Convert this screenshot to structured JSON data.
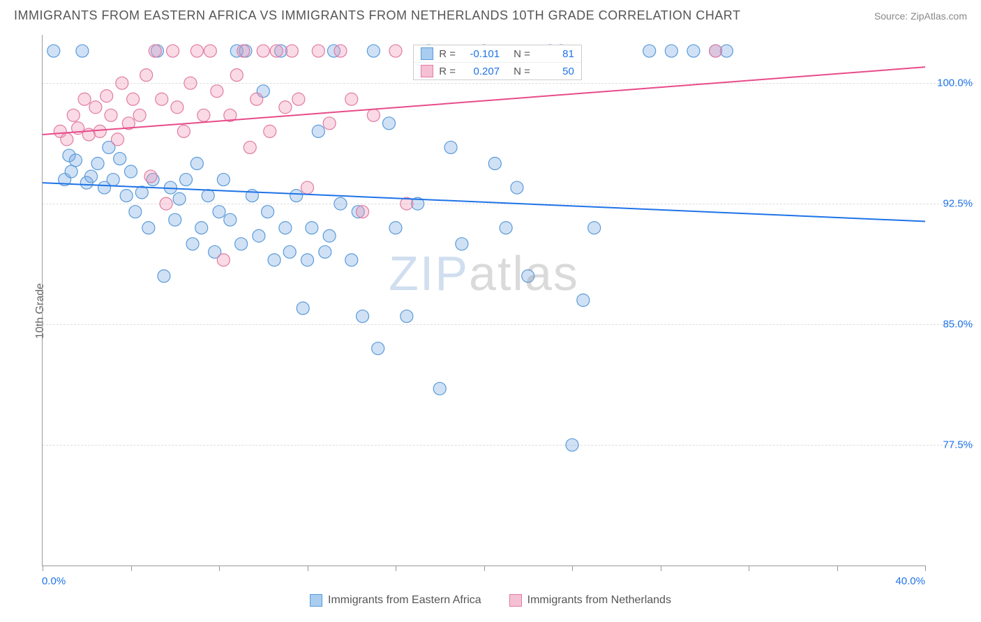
{
  "header": {
    "title": "IMMIGRANTS FROM EASTERN AFRICA VS IMMIGRANTS FROM NETHERLANDS 10TH GRADE CORRELATION CHART",
    "source": "Source: ZipAtlas.com"
  },
  "chart": {
    "type": "scatter",
    "y_axis_label": "10th Grade",
    "x_range": [
      0,
      40
    ],
    "y_range": [
      70,
      103
    ],
    "y_ticks": [
      {
        "value": 100.0,
        "label": "100.0%"
      },
      {
        "value": 92.5,
        "label": "92.5%"
      },
      {
        "value": 85.0,
        "label": "85.0%"
      },
      {
        "value": 77.5,
        "label": "77.5%"
      }
    ],
    "x_ticks": [
      0,
      4,
      8,
      12,
      16,
      20,
      24,
      28,
      32,
      36,
      40
    ],
    "x_min_label": "0.0%",
    "x_max_label": "40.0%",
    "grid_color": "#dddddd",
    "axis_color": "#999999",
    "label_color_blue": "#1e73e8",
    "background_color": "#ffffff",
    "marker_radius": 9,
    "marker_stroke_width": 1.2,
    "trend_line_width": 2,
    "watermark": {
      "zip": "ZIP",
      "atlas": "atlas"
    },
    "series": [
      {
        "name": "Immigrants from Eastern Africa",
        "color_fill": "rgba(120,170,230,0.35)",
        "color_stroke": "#5a9bd8",
        "swatch_fill": "#a8cdf0",
        "swatch_border": "#5a9bd8",
        "R": "-0.101",
        "N": "81",
        "trend": {
          "x1": 0,
          "y1": 93.8,
          "x2": 40,
          "y2": 91.4,
          "color": "#1e73e8"
        },
        "points": [
          [
            0.5,
            102.0
          ],
          [
            1.0,
            94.0
          ],
          [
            1.2,
            95.5
          ],
          [
            1.3,
            94.5
          ],
          [
            1.5,
            95.2
          ],
          [
            1.8,
            102.0
          ],
          [
            2.0,
            93.8
          ],
          [
            2.2,
            94.2
          ],
          [
            2.5,
            95.0
          ],
          [
            2.8,
            93.5
          ],
          [
            3.0,
            96.0
          ],
          [
            3.2,
            94.0
          ],
          [
            3.5,
            95.3
          ],
          [
            3.8,
            93.0
          ],
          [
            4.0,
            94.5
          ],
          [
            4.2,
            92.0
          ],
          [
            4.5,
            93.2
          ],
          [
            4.8,
            91.0
          ],
          [
            5.0,
            94.0
          ],
          [
            5.2,
            102.0
          ],
          [
            5.5,
            88.0
          ],
          [
            5.8,
            93.5
          ],
          [
            6.0,
            91.5
          ],
          [
            6.2,
            92.8
          ],
          [
            6.5,
            94.0
          ],
          [
            6.8,
            90.0
          ],
          [
            7.0,
            95.0
          ],
          [
            7.2,
            91.0
          ],
          [
            7.5,
            93.0
          ],
          [
            7.8,
            89.5
          ],
          [
            8.0,
            92.0
          ],
          [
            8.2,
            94.0
          ],
          [
            8.5,
            91.5
          ],
          [
            8.8,
            102.0
          ],
          [
            9.0,
            90.0
          ],
          [
            9.2,
            102.0
          ],
          [
            9.5,
            93.0
          ],
          [
            9.8,
            90.5
          ],
          [
            10.0,
            99.5
          ],
          [
            10.2,
            92.0
          ],
          [
            10.5,
            89.0
          ],
          [
            10.8,
            102.0
          ],
          [
            11.0,
            91.0
          ],
          [
            11.2,
            89.5
          ],
          [
            11.5,
            93.0
          ],
          [
            11.8,
            86.0
          ],
          [
            12.0,
            89.0
          ],
          [
            12.2,
            91.0
          ],
          [
            12.5,
            97.0
          ],
          [
            12.8,
            89.5
          ],
          [
            13.0,
            90.5
          ],
          [
            13.2,
            102.0
          ],
          [
            13.5,
            92.5
          ],
          [
            14.0,
            89.0
          ],
          [
            14.3,
            92.0
          ],
          [
            14.5,
            85.5
          ],
          [
            15.0,
            102.0
          ],
          [
            15.2,
            83.5
          ],
          [
            15.7,
            97.5
          ],
          [
            16.0,
            91.0
          ],
          [
            16.5,
            85.5
          ],
          [
            17.0,
            92.5
          ],
          [
            17.5,
            102.0
          ],
          [
            18.0,
            81.0
          ],
          [
            18.5,
            96.0
          ],
          [
            19.0,
            90.0
          ],
          [
            20.0,
            102.0
          ],
          [
            20.5,
            95.0
          ],
          [
            21.0,
            91.0
          ],
          [
            21.5,
            93.5
          ],
          [
            22.0,
            88.0
          ],
          [
            23.0,
            102.0
          ],
          [
            23.5,
            102.0
          ],
          [
            24.0,
            77.5
          ],
          [
            24.5,
            86.5
          ],
          [
            25.0,
            91.0
          ],
          [
            27.5,
            102.0
          ],
          [
            28.5,
            102.0
          ],
          [
            29.5,
            102.0
          ],
          [
            30.5,
            102.0
          ],
          [
            31.0,
            102.0
          ]
        ]
      },
      {
        "name": "Immigrants from Netherlands",
        "color_fill": "rgba(240,150,180,0.35)",
        "color_stroke": "#e07ba3",
        "swatch_fill": "#f5c0d3",
        "swatch_border": "#e07ba3",
        "R": "0.207",
        "N": "50",
        "trend": {
          "x1": 0,
          "y1": 96.8,
          "x2": 40,
          "y2": 101.0,
          "color": "#e84a8a"
        },
        "points": [
          [
            0.8,
            97.0
          ],
          [
            1.1,
            96.5
          ],
          [
            1.4,
            98.0
          ],
          [
            1.6,
            97.2
          ],
          [
            1.9,
            99.0
          ],
          [
            2.1,
            96.8
          ],
          [
            2.4,
            98.5
          ],
          [
            2.6,
            97.0
          ],
          [
            2.9,
            99.2
          ],
          [
            3.1,
            98.0
          ],
          [
            3.4,
            96.5
          ],
          [
            3.6,
            100.0
          ],
          [
            3.9,
            97.5
          ],
          [
            4.1,
            99.0
          ],
          [
            4.4,
            98.0
          ],
          [
            4.7,
            100.5
          ],
          [
            4.9,
            94.2
          ],
          [
            5.1,
            102.0
          ],
          [
            5.4,
            99.0
          ],
          [
            5.6,
            92.5
          ],
          [
            5.9,
            102.0
          ],
          [
            6.1,
            98.5
          ],
          [
            6.4,
            97.0
          ],
          [
            6.7,
            100.0
          ],
          [
            7.0,
            102.0
          ],
          [
            7.3,
            98.0
          ],
          [
            7.6,
            102.0
          ],
          [
            7.9,
            99.5
          ],
          [
            8.2,
            89.0
          ],
          [
            8.5,
            98.0
          ],
          [
            8.8,
            100.5
          ],
          [
            9.1,
            102.0
          ],
          [
            9.4,
            96.0
          ],
          [
            9.7,
            99.0
          ],
          [
            10.0,
            102.0
          ],
          [
            10.3,
            97.0
          ],
          [
            10.6,
            102.0
          ],
          [
            11.0,
            98.5
          ],
          [
            11.3,
            102.0
          ],
          [
            11.6,
            99.0
          ],
          [
            12.0,
            93.5
          ],
          [
            12.5,
            102.0
          ],
          [
            13.0,
            97.5
          ],
          [
            13.5,
            102.0
          ],
          [
            14.0,
            99.0
          ],
          [
            14.5,
            92.0
          ],
          [
            15.0,
            98.0
          ],
          [
            16.0,
            102.0
          ],
          [
            16.5,
            92.5
          ],
          [
            30.5,
            102.0
          ]
        ]
      }
    ],
    "legend_bottom": [
      {
        "label": "Immigrants from Eastern Africa",
        "series_idx": 0
      },
      {
        "label": "Immigrants from Netherlands",
        "series_idx": 1
      }
    ],
    "stats_box": {
      "rows": [
        {
          "series_idx": 0,
          "R_label": "R =",
          "N_label": "N ="
        },
        {
          "series_idx": 1,
          "R_label": "R =",
          "N_label": "N ="
        }
      ]
    }
  }
}
